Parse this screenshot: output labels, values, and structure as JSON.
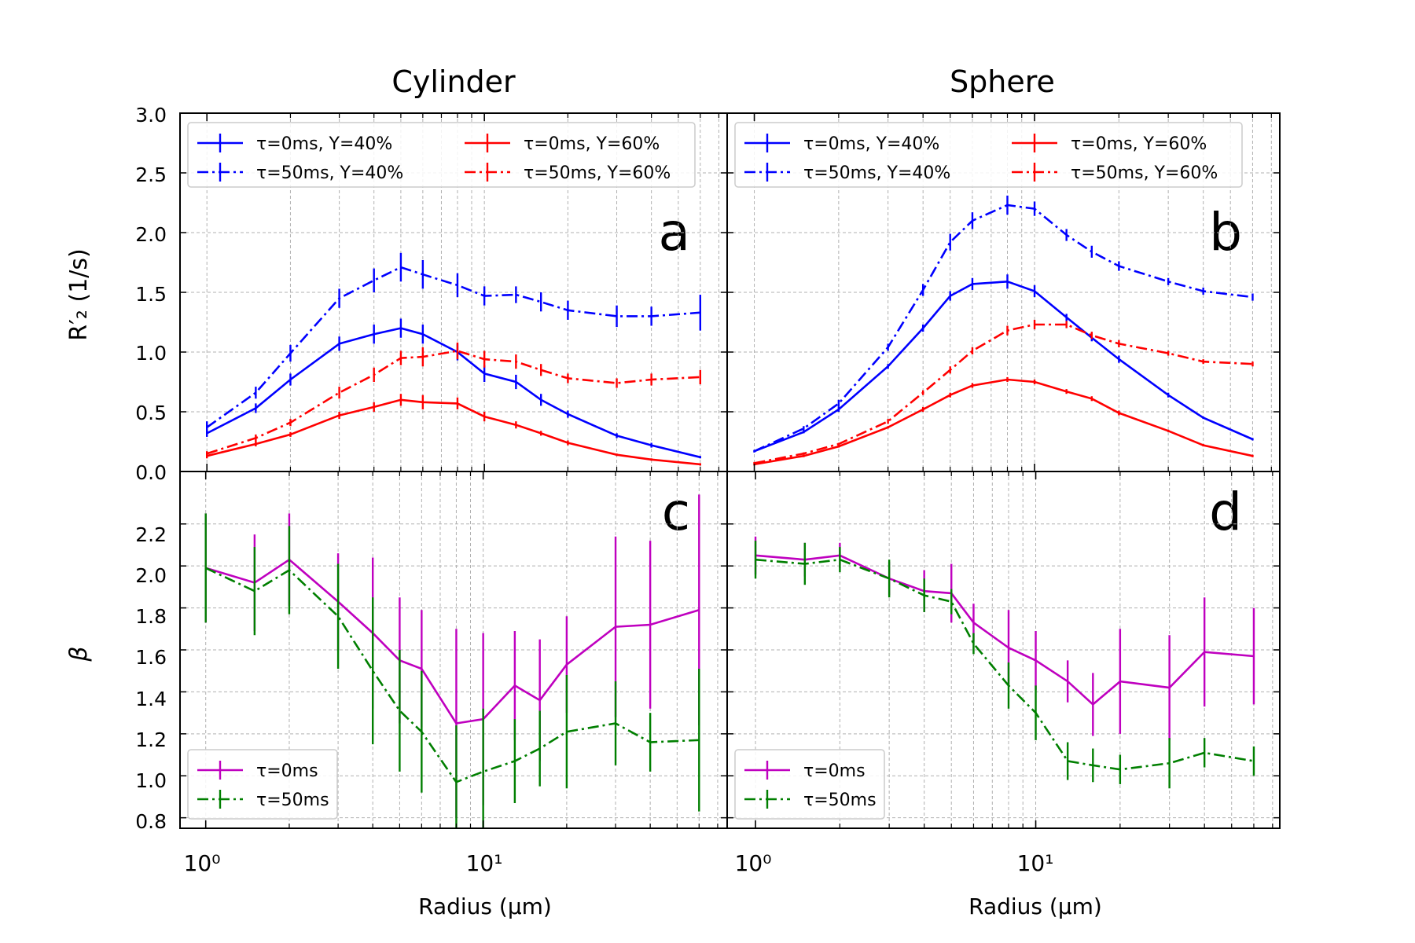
{
  "figure": {
    "column_titles": [
      "Cylinder",
      "Sphere"
    ],
    "x_label": "Radius (μm)",
    "x_tick_labels": [
      "10⁰",
      "10¹"
    ],
    "top_y_label": "R′₂ (1/s)",
    "bottom_y_label": "β",
    "top_y_tick_labels": [
      "0.0",
      "0.5",
      "1.0",
      "1.5",
      "2.0",
      "2.5",
      "3.0"
    ],
    "bottom_y_tick_labels": [
      "0.8",
      "1.0",
      "1.2",
      "1.4",
      "1.6",
      "1.8",
      "2.0",
      "2.2"
    ]
  },
  "chart_data": [
    {
      "type": "line",
      "panel": "a",
      "title": "Cylinder",
      "xlabel": "",
      "ylabel": "R′₂ (1/s)",
      "xscale": "log",
      "xlim": [
        0.8,
        75
      ],
      "ylim": [
        0,
        3
      ],
      "legend": "top",
      "x": [
        1,
        1.5,
        2,
        3,
        4,
        5,
        6,
        8,
        10,
        13,
        16,
        20,
        30,
        40,
        60
      ],
      "series": [
        {
          "name": "τ=0ms, Y=40%",
          "color": "#0000ff",
          "dash": "solid",
          "values": [
            0.32,
            0.53,
            0.77,
            1.07,
            1.15,
            1.2,
            1.15,
            1.0,
            0.82,
            0.75,
            0.6,
            0.48,
            0.3,
            0.22,
            0.12
          ],
          "errors": [
            0.03,
            0.04,
            0.05,
            0.06,
            0.08,
            0.08,
            0.08,
            0.07,
            0.07,
            0.06,
            0.05,
            0.03,
            0.02,
            0.02,
            0.01
          ]
        },
        {
          "name": "τ=50ms, Y=40%",
          "color": "#0000ff",
          "dash": "dashdot",
          "values": [
            0.37,
            0.66,
            0.99,
            1.45,
            1.6,
            1.71,
            1.65,
            1.56,
            1.47,
            1.48,
            1.42,
            1.35,
            1.3,
            1.3,
            1.33
          ],
          "errors": [
            0.05,
            0.05,
            0.07,
            0.08,
            0.1,
            0.12,
            0.12,
            0.1,
            0.08,
            0.07,
            0.08,
            0.08,
            0.09,
            0.08,
            0.15
          ]
        },
        {
          "name": "τ=0ms, Y=60%",
          "color": "#ff0000",
          "dash": "solid",
          "values": [
            0.13,
            0.23,
            0.31,
            0.47,
            0.54,
            0.6,
            0.58,
            0.57,
            0.46,
            0.39,
            0.32,
            0.24,
            0.14,
            0.1,
            0.06
          ],
          "errors": [
            0.02,
            0.02,
            0.02,
            0.03,
            0.04,
            0.05,
            0.06,
            0.05,
            0.04,
            0.03,
            0.02,
            0.02,
            0.01,
            0.01,
            0.01
          ]
        },
        {
          "name": "τ=50ms, Y=60%",
          "color": "#ff0000",
          "dash": "dashdot",
          "values": [
            0.15,
            0.28,
            0.41,
            0.66,
            0.81,
            0.95,
            0.96,
            1.01,
            0.94,
            0.92,
            0.85,
            0.78,
            0.74,
            0.77,
            0.79
          ],
          "errors": [
            0.02,
            0.03,
            0.03,
            0.05,
            0.06,
            0.06,
            0.08,
            0.07,
            0.07,
            0.06,
            0.05,
            0.04,
            0.04,
            0.05,
            0.06
          ]
        }
      ]
    },
    {
      "type": "line",
      "panel": "b",
      "title": "Sphere",
      "xlabel": "",
      "ylabel": "",
      "xscale": "log",
      "xlim": [
        0.8,
        75
      ],
      "ylim": [
        0,
        3
      ],
      "legend": "top",
      "x": [
        1,
        1.5,
        2,
        3,
        4,
        5,
        6,
        8,
        10,
        13,
        16,
        20,
        30,
        40,
        60
      ],
      "series": [
        {
          "name": "τ=0ms, Y=40%",
          "color": "#0000ff",
          "dash": "solid",
          "values": [
            0.17,
            0.33,
            0.52,
            0.88,
            1.2,
            1.47,
            1.57,
            1.59,
            1.51,
            1.29,
            1.12,
            0.94,
            0.64,
            0.45,
            0.27
          ],
          "errors": [
            0.01,
            0.01,
            0.02,
            0.02,
            0.03,
            0.04,
            0.05,
            0.06,
            0.05,
            0.03,
            0.03,
            0.03,
            0.02,
            0.01,
            0.01
          ]
        },
        {
          "name": "τ=50ms, Y=40%",
          "color": "#0000ff",
          "dash": "dashdot",
          "values": [
            0.17,
            0.36,
            0.57,
            1.04,
            1.52,
            1.92,
            2.1,
            2.23,
            2.2,
            1.98,
            1.84,
            1.72,
            1.59,
            1.51,
            1.46
          ],
          "errors": [
            0.01,
            0.02,
            0.03,
            0.03,
            0.05,
            0.07,
            0.07,
            0.08,
            0.06,
            0.05,
            0.05,
            0.04,
            0.03,
            0.03,
            0.03
          ]
        },
        {
          "name": "τ=0ms, Y=60%",
          "color": "#ff0000",
          "dash": "solid",
          "values": [
            0.06,
            0.13,
            0.21,
            0.37,
            0.52,
            0.64,
            0.72,
            0.77,
            0.75,
            0.67,
            0.61,
            0.49,
            0.34,
            0.22,
            0.13
          ],
          "errors": [
            0.01,
            0.01,
            0.01,
            0.01,
            0.02,
            0.02,
            0.02,
            0.02,
            0.02,
            0.02,
            0.02,
            0.02,
            0.01,
            0.01,
            0.01
          ]
        },
        {
          "name": "τ=50ms, Y=60%",
          "color": "#ff0000",
          "dash": "dashdot",
          "values": [
            0.07,
            0.15,
            0.23,
            0.42,
            0.66,
            0.85,
            1.01,
            1.18,
            1.23,
            1.23,
            1.14,
            1.07,
            0.99,
            0.92,
            0.9
          ],
          "errors": [
            0.01,
            0.01,
            0.01,
            0.02,
            0.02,
            0.03,
            0.03,
            0.04,
            0.04,
            0.03,
            0.03,
            0.03,
            0.02,
            0.02,
            0.02
          ]
        }
      ]
    },
    {
      "type": "line",
      "panel": "c",
      "title": "",
      "xlabel": "Radius (μm)",
      "ylabel": "β",
      "xscale": "log",
      "xlim": [
        0.8,
        75
      ],
      "ylim": [
        0.75,
        2.45
      ],
      "legend": "bottom-left",
      "x": [
        1,
        1.5,
        2,
        3,
        4,
        5,
        6,
        8,
        10,
        13,
        16,
        20,
        30,
        40,
        60
      ],
      "series": [
        {
          "name": "τ=0ms",
          "color": "#bf00bf",
          "dash": "solid",
          "values": [
            1.99,
            1.92,
            2.03,
            1.83,
            1.68,
            1.55,
            1.51,
            1.25,
            1.27,
            1.43,
            1.36,
            1.53,
            1.71,
            1.72,
            1.79
          ],
          "errors": [
            0.26,
            0.23,
            0.22,
            0.23,
            0.36,
            0.3,
            0.28,
            0.45,
            0.41,
            0.26,
            0.29,
            0.23,
            0.43,
            0.4,
            0.55
          ]
        },
        {
          "name": "τ=50ms",
          "color": "#007f00",
          "dash": "dashdot",
          "values": [
            1.99,
            1.88,
            1.98,
            1.76,
            1.5,
            1.31,
            1.21,
            0.97,
            1.02,
            1.07,
            1.13,
            1.21,
            1.25,
            1.16,
            1.17
          ],
          "errors": [
            0.26,
            0.21,
            0.21,
            0.25,
            0.35,
            0.29,
            0.29,
            0.27,
            0.3,
            0.2,
            0.18,
            0.27,
            0.2,
            0.14,
            0.34
          ]
        }
      ]
    },
    {
      "type": "line",
      "panel": "d",
      "title": "",
      "xlabel": "Radius (μm)",
      "ylabel": "",
      "xscale": "log",
      "xlim": [
        0.8,
        75
      ],
      "ylim": [
        0.75,
        2.45
      ],
      "legend": "bottom-left",
      "x": [
        1,
        1.5,
        2,
        3,
        4,
        5,
        6,
        8,
        10,
        13,
        16,
        20,
        30,
        40,
        60
      ],
      "series": [
        {
          "name": "τ=0ms",
          "color": "#bf00bf",
          "dash": "solid",
          "values": [
            2.05,
            2.03,
            2.05,
            1.94,
            1.88,
            1.87,
            1.73,
            1.61,
            1.55,
            1.45,
            1.34,
            1.45,
            1.42,
            1.59,
            1.57
          ],
          "errors": [
            0.09,
            0.08,
            0.06,
            0.08,
            0.1,
            0.14,
            0.09,
            0.18,
            0.14,
            0.1,
            0.15,
            0.25,
            0.25,
            0.26,
            0.23
          ]
        },
        {
          "name": "τ=50ms",
          "color": "#007f00",
          "dash": "dashdot",
          "values": [
            2.03,
            2.01,
            2.03,
            1.94,
            1.86,
            1.83,
            1.63,
            1.43,
            1.3,
            1.07,
            1.05,
            1.03,
            1.06,
            1.11,
            1.07
          ],
          "errors": [
            0.09,
            0.1,
            0.06,
            0.09,
            0.08,
            0.06,
            0.05,
            0.11,
            0.13,
            0.09,
            0.08,
            0.07,
            0.12,
            0.07,
            0.07
          ]
        }
      ]
    }
  ],
  "panel_labels": [
    "a",
    "b",
    "c",
    "d"
  ]
}
